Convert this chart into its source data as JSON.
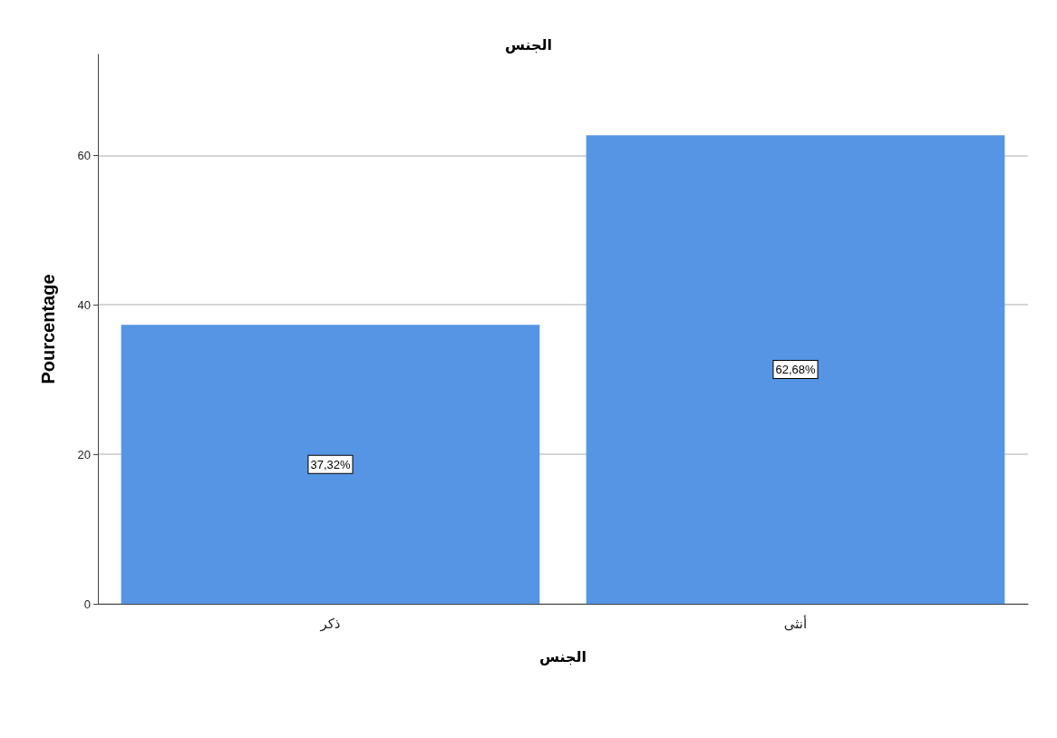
{
  "chart_data": {
    "type": "bar",
    "title": "الجنس",
    "xlabel": "الجنس",
    "ylabel": "Pourcentage",
    "categories": [
      "ذكر",
      "أنثى"
    ],
    "values": [
      37.32,
      62.68
    ],
    "value_labels": [
      "37,32%",
      "62,68%"
    ],
    "color": "#5695e3",
    "ylim": [
      0,
      73.5
    ],
    "yticks": [
      0,
      20,
      40,
      60
    ],
    "grid": "y"
  }
}
